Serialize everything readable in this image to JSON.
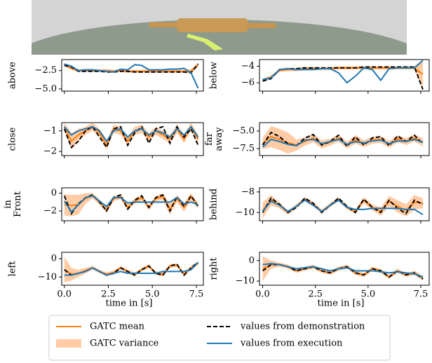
{
  "legend": {
    "mean": {
      "name": "GATC mean",
      "color": "#ff7f0e"
    },
    "variance": {
      "name": "GATC variance",
      "color": "#ffbb88"
    },
    "demonstration": {
      "name": "values from demonstration",
      "color": "#000000"
    },
    "execution": {
      "name": "values from execution",
      "color": "#1f77b4"
    }
  },
  "chart_data": [
    {
      "type": "line",
      "ylabel": "above",
      "x": [
        0,
        0.4,
        0.8,
        1.2,
        1.6,
        2.0,
        2.4,
        2.8,
        3.2,
        3.6,
        4.0,
        4.4,
        4.8,
        5.2,
        5.6,
        6.0,
        6.4,
        6.8,
        7.2,
        7.6
      ],
      "xlim": [
        -0.15,
        7.9
      ],
      "xticks": [
        0,
        2.5,
        5,
        7.5
      ],
      "ylim": [
        -5.3,
        -1.0
      ],
      "yticks": [
        {
          "value": -2.5,
          "label": "−2.5"
        },
        {
          "value": -5.0,
          "label": "−5.0"
        }
      ],
      "demonstration": [
        -1.8,
        -2.0,
        -2.6,
        -2.6,
        -2.6,
        -2.6,
        -2.7,
        -2.7,
        -2.6,
        -2.6,
        -2.7,
        -2.7,
        -2.7,
        -2.7,
        -2.7,
        -2.7,
        -2.7,
        -2.7,
        -2.8,
        -1.6
      ],
      "mean": [
        -1.7,
        -2.2,
        -2.5,
        -2.5,
        -2.5,
        -2.5,
        -2.5,
        -2.6,
        -2.5,
        -2.6,
        -2.6,
        -2.6,
        -2.6,
        -2.6,
        -2.6,
        -2.6,
        -2.6,
        -2.6,
        -2.6,
        -1.7
      ],
      "variance": {
        "lower": [
          -1.9,
          -2.4,
          -2.7,
          -2.7,
          -2.7,
          -2.7,
          -2.7,
          -2.8,
          -2.7,
          -2.8,
          -2.8,
          -2.8,
          -2.8,
          -2.8,
          -2.8,
          -2.8,
          -2.8,
          -2.8,
          -2.9,
          -2.0
        ],
        "upper": [
          -1.5,
          -2.0,
          -2.3,
          -2.3,
          -2.3,
          -2.3,
          -2.3,
          -2.4,
          -2.3,
          -2.4,
          -2.4,
          -2.4,
          -2.4,
          -2.4,
          -2.4,
          -2.4,
          -2.4,
          -2.4,
          -2.3,
          -1.4
        ]
      },
      "execution": [
        -1.6,
        -1.9,
        -2.5,
        -2.4,
        -2.4,
        -2.5,
        -2.6,
        -2.7,
        -2.3,
        -2.4,
        -1.7,
        -1.8,
        -2.4,
        -2.4,
        -2.4,
        -2.3,
        -2.3,
        -2.2,
        -2.8,
        -4.9
      ]
    },
    {
      "type": "line",
      "ylabel": "below",
      "x": [
        0,
        0.4,
        0.8,
        1.2,
        1.6,
        2.0,
        2.4,
        2.8,
        3.2,
        3.6,
        4.0,
        4.4,
        4.8,
        5.2,
        5.6,
        6.0,
        6.4,
        6.8,
        7.2,
        7.6
      ],
      "xlim": [
        -0.15,
        7.9
      ],
      "xticks": [
        0,
        2.5,
        5,
        7.5
      ],
      "ylim": [
        -7.0,
        -3.2
      ],
      "yticks": [
        {
          "value": -4,
          "label": "−4"
        },
        {
          "value": -6,
          "label": "−6"
        }
      ],
      "demonstration": [
        -5.8,
        -5.5,
        -4.4,
        -4.3,
        -4.3,
        -4.2,
        -4.2,
        -4.2,
        -4.2,
        -4.2,
        -4.2,
        -4.2,
        -4.1,
        -4.1,
        -4.1,
        -4.1,
        -4.1,
        -4.1,
        -4.1,
        -6.8
      ],
      "mean": [
        -5.7,
        -5.3,
        -4.5,
        -4.4,
        -4.4,
        -4.3,
        -4.3,
        -4.3,
        -4.3,
        -4.2,
        -4.2,
        -4.2,
        -4.2,
        -4.2,
        -4.2,
        -4.2,
        -4.2,
        -4.2,
        -4.2,
        -5.0
      ],
      "variance": {
        "lower": [
          -5.9,
          -5.5,
          -4.7,
          -4.6,
          -4.6,
          -4.5,
          -4.5,
          -4.5,
          -4.5,
          -4.4,
          -4.4,
          -4.4,
          -4.4,
          -4.4,
          -4.4,
          -4.4,
          -4.4,
          -4.4,
          -4.4,
          -6.9
        ],
        "upper": [
          -5.5,
          -5.1,
          -4.3,
          -4.2,
          -4.2,
          -4.1,
          -4.1,
          -4.1,
          -4.1,
          -4.0,
          -4.0,
          -4.0,
          -4.0,
          -4.0,
          -4.0,
          -4.0,
          -4.0,
          -4.0,
          -4.0,
          -3.2
        ]
      },
      "execution": [
        -5.6,
        -5.4,
        -4.4,
        -4.3,
        -4.4,
        -4.4,
        -4.4,
        -4.3,
        -4.3,
        -4.8,
        -6.0,
        -5.2,
        -4.2,
        -4.4,
        -5.7,
        -4.3,
        -4.2,
        -4.2,
        -4.2,
        -3.3
      ]
    },
    {
      "type": "line",
      "ylabel": "close",
      "x": [
        0,
        0.4,
        0.8,
        1.2,
        1.6,
        2.0,
        2.4,
        2.8,
        3.2,
        3.6,
        4.0,
        4.4,
        4.8,
        5.2,
        5.6,
        6.0,
        6.4,
        6.8,
        7.2,
        7.6
      ],
      "xlim": [
        -0.15,
        7.9
      ],
      "xticks": [
        0,
        2.5,
        5,
        7.5
      ],
      "ylim": [
        -2.2,
        -0.6
      ],
      "yticks": [
        {
          "value": -1,
          "label": "−1"
        },
        {
          "value": -2,
          "label": "−2"
        }
      ],
      "demonstration": [
        -0.9,
        -1.8,
        -1.5,
        -1.0,
        -0.8,
        -1.3,
        -1.8,
        -0.9,
        -0.8,
        -1.7,
        -1.1,
        -0.8,
        -1.6,
        -0.9,
        -0.8,
        -1.6,
        -0.8,
        -1.3,
        -0.9,
        -1.7
      ],
      "mean": [
        -0.8,
        -1.5,
        -1.2,
        -1.0,
        -0.8,
        -1.1,
        -1.7,
        -0.9,
        -1.0,
        -1.5,
        -1.0,
        -0.9,
        -1.3,
        -1.0,
        -1.2,
        -1.4,
        -0.9,
        -1.4,
        -0.8,
        -1.4
      ],
      "variance": {
        "lower": [
          -1.0,
          -1.9,
          -1.5,
          -1.2,
          -1.0,
          -1.3,
          -1.9,
          -1.1,
          -1.2,
          -1.7,
          -1.2,
          -1.1,
          -1.5,
          -1.2,
          -1.4,
          -1.6,
          -1.1,
          -1.6,
          -1.0,
          -1.6
        ],
        "upper": [
          -0.6,
          -1.1,
          -0.9,
          -0.8,
          -0.6,
          -0.9,
          -1.5,
          -0.7,
          -0.8,
          -1.3,
          -0.8,
          -0.7,
          -1.1,
          -0.8,
          -1.0,
          -1.2,
          -0.7,
          -1.2,
          -0.6,
          -1.2
        ]
      },
      "execution": [
        -0.8,
        -1.2,
        -1.0,
        -0.9,
        -0.8,
        -1.0,
        -1.5,
        -1.0,
        -0.9,
        -1.3,
        -1.0,
        -0.9,
        -1.2,
        -1.0,
        -1.1,
        -1.3,
        -0.9,
        -1.2,
        -0.8,
        -1.3
      ]
    },
    {
      "type": "line",
      "ylabel": "far\naway",
      "x": [
        0,
        0.4,
        0.8,
        1.2,
        1.6,
        2.0,
        2.4,
        2.8,
        3.2,
        3.6,
        4.0,
        4.4,
        4.8,
        5.2,
        5.6,
        6.0,
        6.4,
        6.8,
        7.2,
        7.6
      ],
      "xlim": [
        -0.15,
        7.9
      ],
      "xticks": [
        0,
        2.5,
        5,
        7.5
      ],
      "ylim": [
        -8.5,
        -3.8
      ],
      "yticks": [
        {
          "value": -5.0,
          "label": "−5.0"
        },
        {
          "value": -7.5,
          "label": "−7.5"
        }
      ],
      "demonstration": [
        -7.0,
        -5.2,
        -5.8,
        -6.8,
        -7.1,
        -6.0,
        -5.5,
        -7.0,
        -6.5,
        -5.6,
        -7.2,
        -5.8,
        -7.0,
        -6.0,
        -5.8,
        -7.1,
        -5.7,
        -6.5,
        -5.6,
        -6.8
      ],
      "mean": [
        -6.8,
        -5.8,
        -6.2,
        -6.7,
        -7.0,
        -6.5,
        -6.0,
        -6.9,
        -6.6,
        -6.0,
        -7.0,
        -6.2,
        -6.8,
        -6.3,
        -6.2,
        -6.9,
        -6.1,
        -6.5,
        -6.0,
        -6.6
      ],
      "variance": {
        "lower": [
          -7.6,
          -7.3,
          -7.7,
          -8.2,
          -7.8,
          -7.1,
          -6.6,
          -7.5,
          -7.1,
          -6.5,
          -7.5,
          -6.8,
          -7.3,
          -6.8,
          -6.7,
          -7.4,
          -6.6,
          -7.0,
          -6.5,
          -7.2
        ],
        "upper": [
          -6.0,
          -4.3,
          -4.7,
          -5.2,
          -6.2,
          -5.9,
          -5.4,
          -6.3,
          -6.1,
          -5.5,
          -6.5,
          -5.6,
          -6.3,
          -5.8,
          -5.7,
          -6.4,
          -5.6,
          -6.0,
          -5.5,
          -6.0
        ]
      },
      "execution": [
        -7.3,
        -6.2,
        -6.5,
        -6.9,
        -7.1,
        -6.3,
        -6.2,
        -6.8,
        -6.5,
        -6.2,
        -6.9,
        -6.5,
        -6.7,
        -6.4,
        -6.3,
        -6.8,
        -6.4,
        -6.5,
        -6.2,
        -6.6
      ]
    },
    {
      "type": "line",
      "ylabel": "in\nFront",
      "x": [
        0,
        0.4,
        0.8,
        1.2,
        1.6,
        2.0,
        2.4,
        2.8,
        3.2,
        3.6,
        4.0,
        4.4,
        4.8,
        5.2,
        5.6,
        6.0,
        6.4,
        6.8,
        7.2,
        7.6
      ],
      "xlim": [
        -0.15,
        7.9
      ],
      "xticks": [
        0,
        2.5,
        5,
        7.5
      ],
      "ylim": [
        -3.1,
        0.6
      ],
      "yticks": [
        0,
        {
          "value": -2,
          "label": "−2"
        }
      ],
      "demonstration": [
        -0.3,
        -2.3,
        -1.2,
        -0.5,
        -0.2,
        -1.0,
        -2.0,
        -0.5,
        -0.2,
        -1.8,
        -0.8,
        -0.3,
        -1.6,
        -0.5,
        -0.2,
        -2.0,
        -0.4,
        -1.5,
        -0.3,
        -1.5
      ],
      "mean": [
        -1.3,
        -1.4,
        -1.3,
        -0.6,
        -0.3,
        -1.0,
        -1.9,
        -0.6,
        -0.4,
        -1.6,
        -0.9,
        -0.5,
        -1.6,
        -0.6,
        -0.4,
        -1.8,
        -0.6,
        -1.6,
        -0.4,
        -1.4
      ],
      "variance": {
        "lower": [
          -2.5,
          -2.6,
          -2.4,
          -1.2,
          -0.6,
          -1.3,
          -2.2,
          -0.9,
          -0.7,
          -1.9,
          -1.2,
          -0.8,
          -1.9,
          -0.9,
          -0.8,
          -2.4,
          -1.0,
          -2.1,
          -0.8,
          -1.7
        ],
        "upper": [
          -0.1,
          -0.2,
          -0.2,
          0.0,
          0.0,
          -0.7,
          -1.6,
          -0.3,
          -0.1,
          -1.3,
          -0.6,
          -0.2,
          -1.3,
          -0.3,
          0.0,
          -1.2,
          -0.2,
          -1.1,
          0.0,
          -1.1
        ]
      },
      "execution": [
        -0.9,
        -2.1,
        -1.3,
        -0.5,
        -0.3,
        -0.9,
        -1.5,
        -0.5,
        -0.5,
        -1.1,
        -1.0,
        -1.0,
        -1.0,
        -1.0,
        -1.0,
        -1.0,
        -0.5,
        -1.2,
        -1.0,
        -1.3
      ]
    },
    {
      "type": "line",
      "ylabel": "behind",
      "x": [
        0,
        0.4,
        0.8,
        1.2,
        1.6,
        2.0,
        2.4,
        2.8,
        3.2,
        3.6,
        4.0,
        4.4,
        4.8,
        5.2,
        5.6,
        6.0,
        6.4,
        6.8,
        7.2,
        7.6
      ],
      "xlim": [
        -0.15,
        7.9
      ],
      "xticks": [
        0,
        2.5,
        5,
        7.5
      ],
      "ylim": [
        -10.8,
        -7.6
      ],
      "yticks": [
        {
          "value": -8,
          "label": "−8"
        },
        {
          "value": -10,
          "label": "−10"
        }
      ],
      "demonstration": [
        -10.0,
        -8.6,
        -9.2,
        -10.0,
        -9.5,
        -8.6,
        -9.1,
        -10.0,
        -9.3,
        -8.6,
        -9.4,
        -10.0,
        -8.7,
        -9.5,
        -10.0,
        -8.8,
        -9.6,
        -10.1,
        -8.8,
        -9.2
      ],
      "mean": [
        -9.8,
        -8.8,
        -9.3,
        -10.0,
        -9.4,
        -8.7,
        -9.2,
        -9.9,
        -9.3,
        -8.7,
        -9.5,
        -9.9,
        -8.8,
        -9.5,
        -9.9,
        -8.9,
        -9.4,
        -9.8,
        -9.0,
        -9.1
      ],
      "variance": {
        "lower": [
          -10.6,
          -9.3,
          -9.6,
          -10.2,
          -9.6,
          -8.9,
          -9.4,
          -10.1,
          -9.5,
          -8.9,
          -9.7,
          -10.1,
          -9.1,
          -9.8,
          -10.3,
          -9.4,
          -10.0,
          -10.4,
          -9.7,
          -9.6
        ],
        "upper": [
          -9.0,
          -8.3,
          -9.0,
          -9.8,
          -9.2,
          -8.5,
          -9.0,
          -9.7,
          -9.1,
          -8.5,
          -9.3,
          -9.7,
          -8.5,
          -9.2,
          -9.5,
          -8.4,
          -8.8,
          -9.2,
          -8.3,
          -8.6
        ]
      },
      "execution": [
        -9.9,
        -8.9,
        -9.3,
        -9.9,
        -9.4,
        -8.8,
        -9.3,
        -9.9,
        -9.3,
        -8.8,
        -9.5,
        -9.7,
        -9.7,
        -9.6,
        -9.6,
        -9.6,
        -9.6,
        -9.7,
        -9.7,
        -10.2
      ]
    },
    {
      "type": "line",
      "ylabel": "left",
      "xlabel": "time in [s]",
      "x": [
        0,
        0.4,
        0.8,
        1.2,
        1.6,
        2.0,
        2.4,
        2.8,
        3.2,
        3.6,
        4.0,
        4.4,
        4.8,
        5.2,
        5.6,
        6.0,
        6.4,
        6.8,
        7.2,
        7.6
      ],
      "xlim": [
        -0.15,
        7.9
      ],
      "xticks": [
        {
          "value": 0,
          "label": "0.0"
        },
        2.5,
        {
          "value": 5,
          "label": "5.0"
        },
        7.5
      ],
      "ylim": [
        -14.5,
        3.5
      ],
      "yticks": [
        0,
        {
          "value": -10,
          "label": "−10"
        }
      ],
      "demonstration": [
        -6,
        -9,
        -8,
        -7,
        -5,
        -7,
        -9,
        -8,
        -5,
        -7,
        -9,
        -6,
        -4,
        -8,
        -9,
        -4,
        -3,
        -9,
        -5,
        -2
      ],
      "mean": [
        -6,
        -8.5,
        -8,
        -6.5,
        -5,
        -7,
        -8.5,
        -7.5,
        -5,
        -7,
        -8.5,
        -6,
        -4,
        -8,
        -8.5,
        -4,
        -3.5,
        -8.5,
        -5,
        -2.5
      ],
      "variance": {
        "lower": [
          -13,
          -12,
          -10,
          -8,
          -6,
          -8,
          -9.5,
          -8.5,
          -6,
          -8,
          -9.5,
          -7,
          -5,
          -9,
          -9.5,
          -5,
          -4.5,
          -9.5,
          -6,
          -3.5
        ],
        "upper": [
          1,
          -5,
          -6,
          -5,
          -4,
          -6,
          -7.5,
          -6.5,
          -4,
          -6,
          -7.5,
          -5,
          -3,
          -7,
          -7.5,
          -3,
          -2.5,
          -7.5,
          -4,
          -1.5
        ]
      },
      "execution": [
        -9,
        -9,
        -8,
        -7,
        -5,
        -7,
        -9,
        -8,
        -7,
        -8,
        -8,
        -8,
        -8,
        -8,
        -7,
        -7,
        -7,
        -7,
        -6,
        -2
      ]
    },
    {
      "type": "line",
      "ylabel": "right",
      "xlabel": "time in [s]",
      "x": [
        0,
        0.4,
        0.8,
        1.2,
        1.6,
        2.0,
        2.4,
        2.8,
        3.2,
        3.6,
        4.0,
        4.4,
        4.8,
        5.2,
        5.6,
        6.0,
        6.4,
        6.8,
        7.2,
        7.6
      ],
      "xlim": [
        -0.15,
        7.9
      ],
      "xticks": [
        {
          "value": 0,
          "label": "0.0"
        },
        2.5,
        {
          "value": 5,
          "label": "5.0"
        },
        7.5
      ],
      "ylim": [
        -12,
        4
      ],
      "yticks": [
        0,
        {
          "value": -10,
          "label": "−10"
        }
      ],
      "demonstration": [
        -5,
        -2,
        -2,
        -3,
        -5,
        -4,
        -3,
        -5,
        -6,
        -4,
        -3,
        -6,
        -7,
        -4,
        -5,
        -8,
        -5,
        -7,
        -6,
        -9
      ],
      "mean": [
        -4,
        -2,
        -2,
        -3,
        -5,
        -4,
        -3,
        -5,
        -6,
        -4,
        -3,
        -6,
        -7,
        -4,
        -5,
        -8,
        -5,
        -7,
        -6,
        -8.5
      ],
      "variance": {
        "lower": [
          -10,
          -4,
          -3,
          -4,
          -6,
          -5,
          -4,
          -6,
          -7,
          -5,
          -4,
          -7,
          -8,
          -5,
          -6,
          -9,
          -6,
          -8,
          -7,
          -9.5
        ],
        "upper": [
          2,
          0,
          -1,
          -2,
          -4,
          -3,
          -2,
          -4,
          -5,
          -3,
          -2,
          -5,
          -6,
          -3,
          -4,
          -7,
          -4,
          -6,
          -5,
          -7.5
        ]
      },
      "execution": [
        -2,
        -1.5,
        -2,
        -3,
        -4,
        -3.5,
        -3,
        -4,
        -5,
        -4,
        -3.5,
        -5,
        -5,
        -5,
        -5.5,
        -6,
        -5.5,
        -6,
        -6.5,
        -8
      ]
    }
  ]
}
